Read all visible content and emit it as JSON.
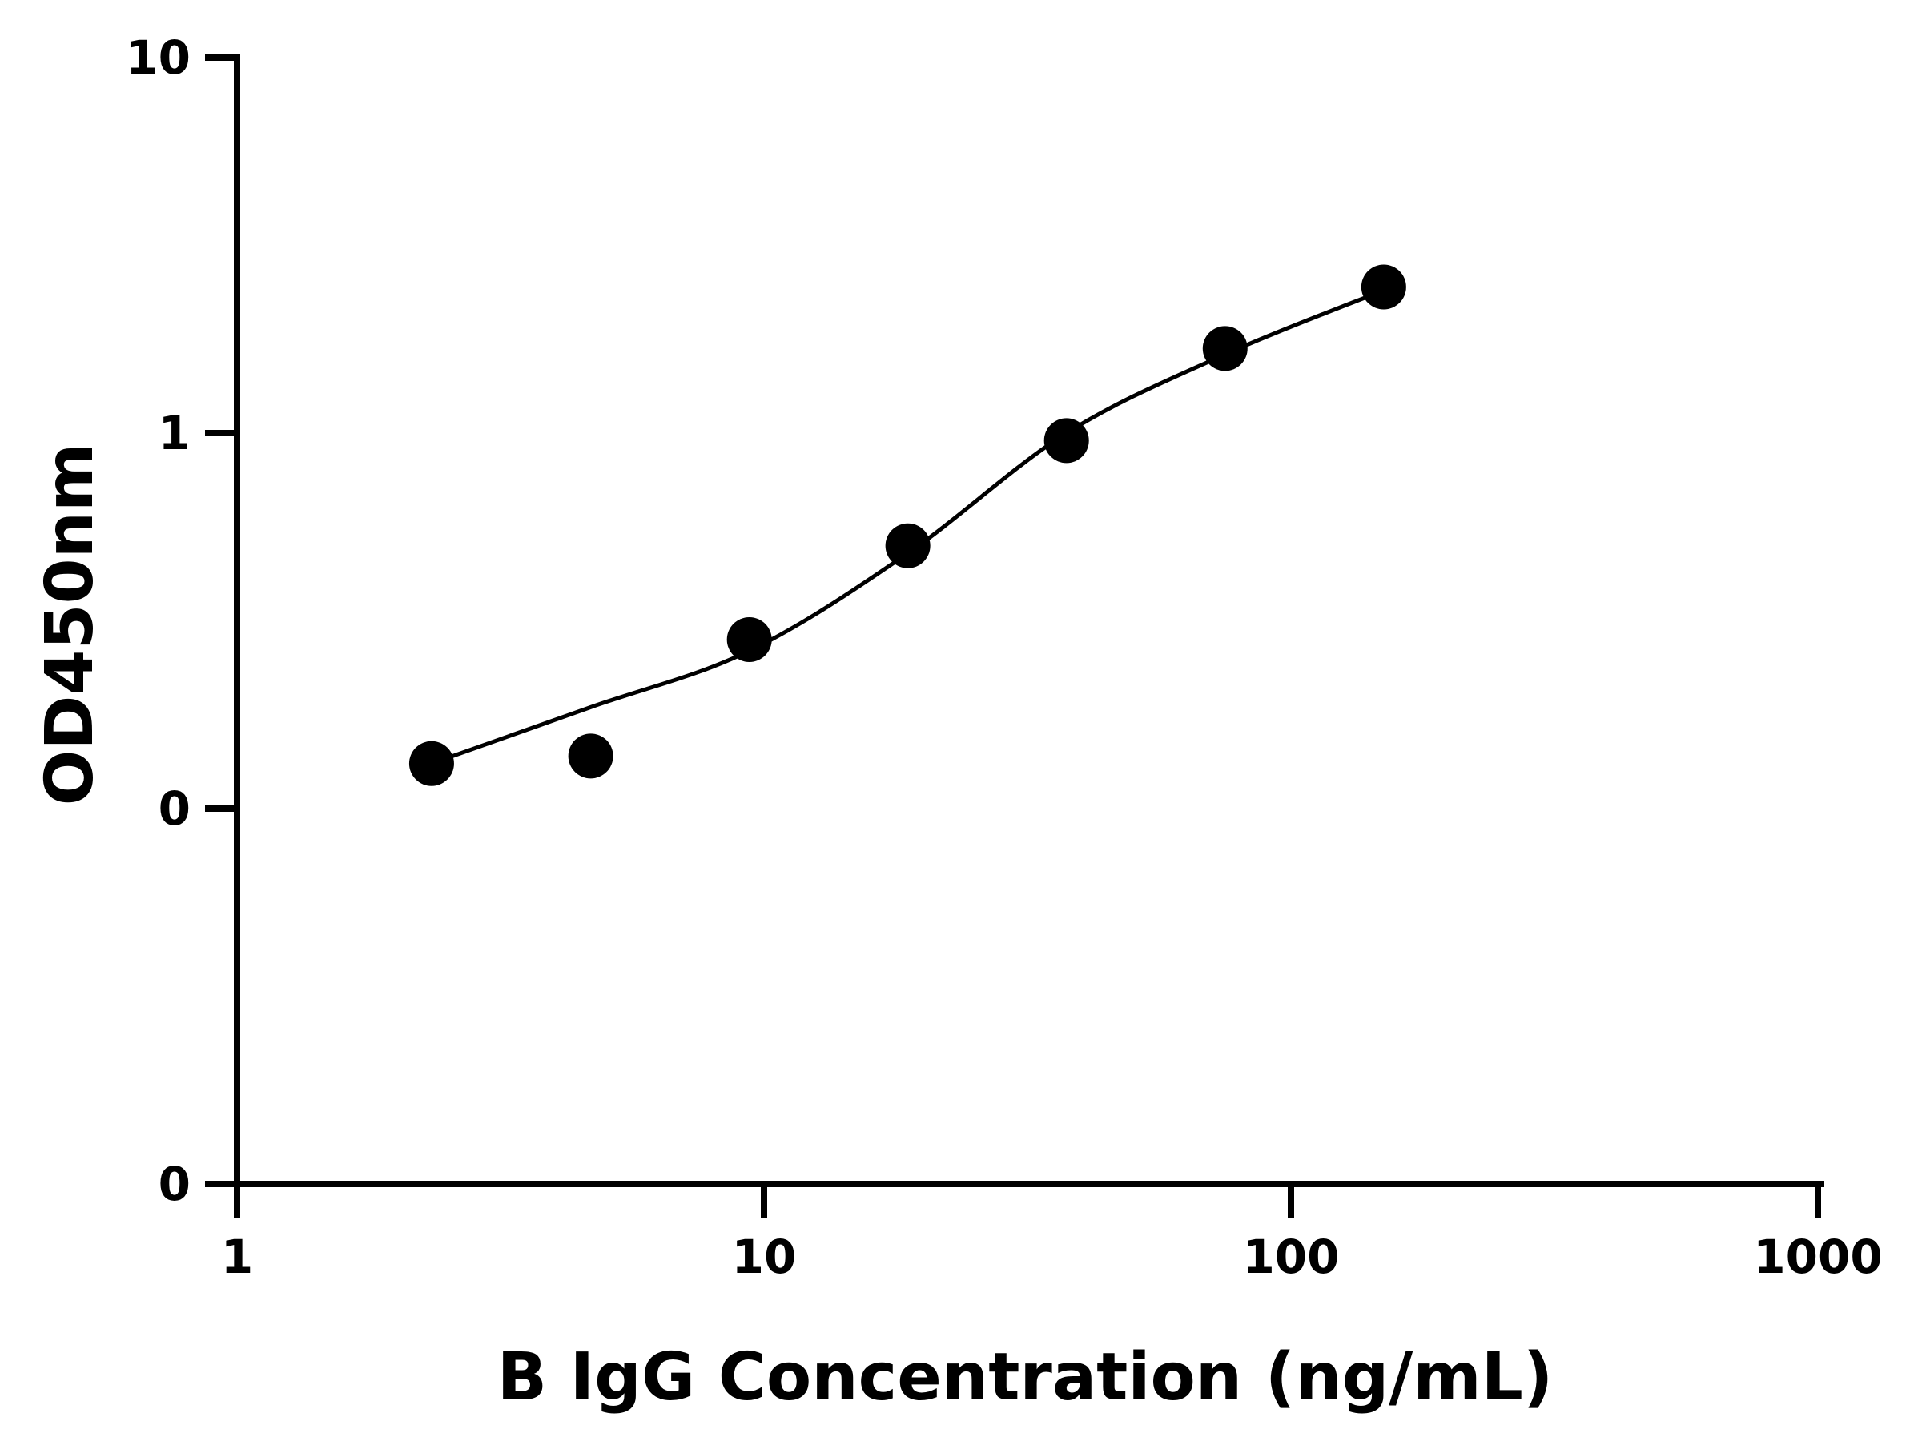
{
  "chart_data": {
    "type": "scatter",
    "title": "",
    "xlabel": "B IgG Concentration (ng/mL)",
    "ylabel": "OD450nm",
    "x_scale": "log",
    "y_scale": "custom-broken",
    "xlim": [
      1,
      1000
    ],
    "x_ticks": [
      "1",
      "10",
      "100",
      "1000"
    ],
    "y_ticks": [
      "0",
      "0",
      "1",
      "10"
    ],
    "grid": false,
    "legend": "none",
    "series": [
      {
        "type": "scatter",
        "x": [
          2.34,
          4.69,
          9.38,
          18.75,
          37.5,
          75,
          150
        ],
        "y": [
          0.12,
          0.14,
          0.45,
          0.7,
          0.98,
          1.68,
          2.45
        ]
      },
      {
        "type": "line",
        "x": [
          2.34,
          4.69,
          9.38,
          18.75,
          37.5,
          75,
          150
        ],
        "y": [
          0.12,
          0.27,
          0.42,
          0.68,
          1.0,
          1.62,
          2.4
        ]
      }
    ],
    "colors": {
      "axis": "#000000",
      "points": "#000000",
      "curve": "#000000"
    }
  }
}
